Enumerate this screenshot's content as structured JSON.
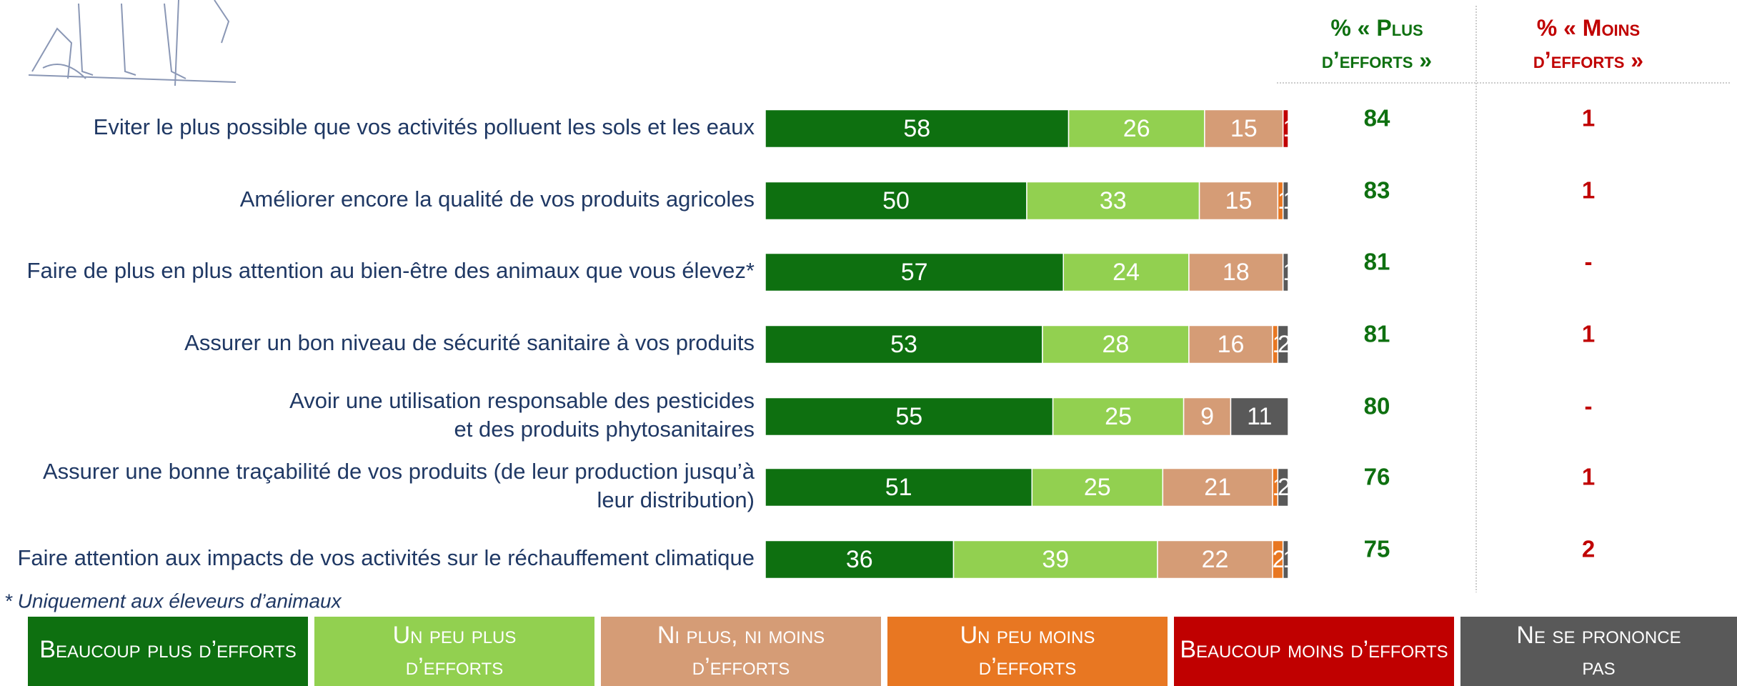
{
  "chart_data": {
    "type": "stacked-bar-horizontal",
    "categories": [
      "Eviter le plus possible que vos activités polluent les sols et les eaux",
      "Améliorer encore la qualité de vos produits agricoles",
      "Faire de plus en plus attention au bien-être des animaux que vous élevez*",
      "Assurer un bon niveau de sécurité sanitaire à vos produits",
      "Avoir une utilisation responsable des pesticides\net des produits phytosanitaires",
      "Assurer une bonne traçabilité de vos produits (de leur production jusqu’à\nleur distribution)",
      "Faire attention aux impacts de vos activités sur le réchauffement climatique"
    ],
    "series": [
      {
        "name": "Beaucoup plus d’efforts",
        "color": "#0e7010",
        "values": [
          58,
          50,
          57,
          53,
          55,
          51,
          36
        ]
      },
      {
        "name": "Un peu plus d’efforts",
        "color": "#92d050",
        "values": [
          26,
          33,
          24,
          28,
          25,
          25,
          39
        ]
      },
      {
        "name": "Ni plus, ni moins d’efforts",
        "color": "#d59c76",
        "values": [
          15,
          15,
          18,
          16,
          9,
          21,
          22
        ]
      },
      {
        "name": "Un peu moins d’efforts",
        "color": "#e87722",
        "values": [
          0,
          1,
          0,
          1,
          0,
          1,
          2
        ]
      },
      {
        "name": "Beaucoup moins d’efforts",
        "color": "#c00000",
        "values": [
          1,
          0,
          0,
          0,
          0,
          0,
          0
        ]
      },
      {
        "name": "Ne se prononce pas",
        "color": "#595959",
        "values": [
          0,
          1,
          1,
          2,
          11,
          2,
          1
        ]
      }
    ],
    "xlim": [
      0,
      100
    ],
    "columns": [
      {
        "title": "% « Plus d’efforts »",
        "color": "#0e7010",
        "values": [
          84,
          83,
          81,
          81,
          80,
          76,
          75
        ]
      },
      {
        "title": "% « Moins d’efforts »",
        "color": "#c00000",
        "values": [
          1,
          1,
          "-",
          1,
          "-",
          1,
          2
        ]
      }
    ],
    "footnote": "* Uniquement aux éleveurs d’animaux"
  }
}
